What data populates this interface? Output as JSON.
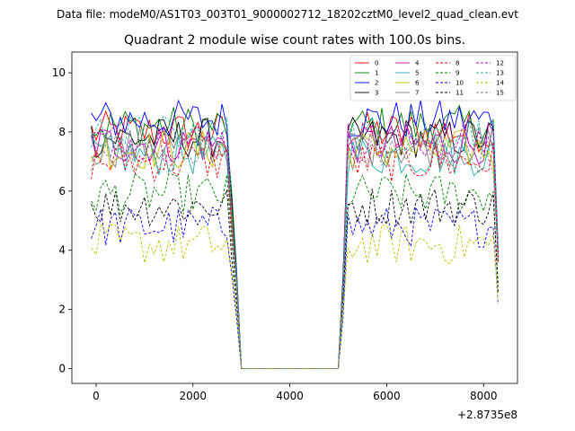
{
  "suptitle": "Data file: modeM0/AS1T03_003T01_9000002712_18202cztM0_level2_quad_clean.evt",
  "chart_data": {
    "type": "line",
    "title": "Quadrant 2 module wise count rates with 100.0s bins.",
    "xlabel": "",
    "ylabel": "",
    "x_offset_label": "+2.8735e8",
    "xlim": [
      -500,
      8700
    ],
    "ylim": [
      -0.5,
      10.7
    ],
    "xticks": [
      0,
      2000,
      4000,
      6000,
      8000
    ],
    "yticks": [
      0,
      2,
      4,
      6,
      8,
      10
    ],
    "x_start": -100,
    "x_step": 100,
    "x_count": 85,
    "gap_start_index": 31,
    "gap_end_index": 51,
    "legend": {
      "position": "top-right",
      "columns": 4
    },
    "series": [
      {
        "name": "0",
        "color": "#ff0000",
        "dash": "solid",
        "level": 8.0
      },
      {
        "name": "1",
        "color": "#008000",
        "dash": "solid",
        "level": 8.2
      },
      {
        "name": "2",
        "color": "#0000ff",
        "dash": "solid",
        "level": 8.4
      },
      {
        "name": "3",
        "color": "#000000",
        "dash": "solid",
        "level": 7.8
      },
      {
        "name": "4",
        "color": "#bf00bf",
        "dash": "solid",
        "level": 7.6
      },
      {
        "name": "5",
        "color": "#20b2aa",
        "dash": "solid",
        "level": 7.2
      },
      {
        "name": "6",
        "color": "#bfbf00",
        "dash": "solid",
        "level": 7.4
      },
      {
        "name": "7",
        "color": "#808080",
        "dash": "solid",
        "level": 7.5
      },
      {
        "name": "8",
        "color": "#ff0000",
        "dash": "dashed",
        "level": 7.0
      },
      {
        "name": "9",
        "color": "#008000",
        "dash": "dashed",
        "level": 5.9
      },
      {
        "name": "10",
        "color": "#0000ff",
        "dash": "dashed",
        "level": 4.8
      },
      {
        "name": "11",
        "color": "#000000",
        "dash": "dashed",
        "level": 5.5
      },
      {
        "name": "12",
        "color": "#bf00bf",
        "dash": "dashed",
        "level": 7.7
      },
      {
        "name": "13",
        "color": "#20b2aa",
        "dash": "dashed",
        "level": 7.9
      },
      {
        "name": "14",
        "color": "#bfbf00",
        "dash": "dashed",
        "level": 4.2
      },
      {
        "name": "15",
        "color": "#808080",
        "dash": "dashed",
        "level": 7.3
      }
    ]
  }
}
